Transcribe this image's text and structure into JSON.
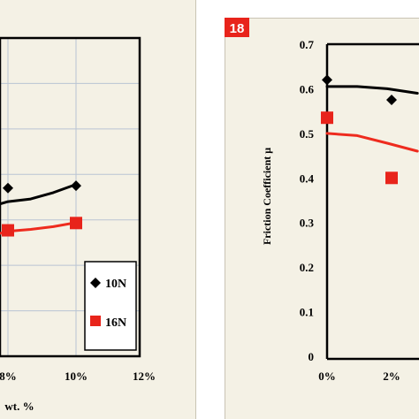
{
  "colors": {
    "panel_bg": "#f4f1e5",
    "panel_border": "#c9c4b4",
    "grid": "#b9c4d3",
    "series_10N": "#000000",
    "series_16N": "#ee2b1e",
    "marker_16N": "#e8241b",
    "badge": "#e8241b"
  },
  "chart_data": [
    {
      "panel": "left (cropped)",
      "type": "scatter",
      "x_ticks": [
        "8%",
        "10%",
        "12%"
      ],
      "x_label_fragment": "wt. %",
      "x_unit": "wt. %",
      "xlim": [
        0,
        12
      ],
      "ylim": [
        0,
        0.7
      ],
      "grid": true,
      "legend": {
        "position": "bottom-right",
        "entries": [
          {
            "label": "10N",
            "marker": "diamond"
          },
          {
            "label": "16N",
            "marker": "square"
          }
        ]
      },
      "series": [
        {
          "name": "10N",
          "marker": "diamond",
          "x": [
            8,
            10
          ],
          "y": [
            0.37,
            0.375
          ],
          "trend_y": [
            0.335,
            0.34,
            0.346,
            0.36,
            0.378
          ]
        },
        {
          "name": "16N",
          "marker": "square",
          "x": [
            8,
            10
          ],
          "y": [
            0.277,
            0.293
          ],
          "trend_y": [
            0.27,
            0.275,
            0.279,
            0.285,
            0.294
          ]
        }
      ]
    },
    {
      "panel": "right",
      "badge": "18",
      "type": "scatter",
      "ylabel": "Friction   Coefficient μ",
      "y_ticks": [
        "0",
        "0.1",
        "0.2",
        "0.3",
        "0.4",
        "0.5",
        "0.6",
        "0.7"
      ],
      "x_ticks": [
        "0%",
        "2%"
      ],
      "ylim": [
        0,
        0.7
      ],
      "xlim": [
        0,
        12
      ],
      "grid": false,
      "series": [
        {
          "name": "10N",
          "marker": "diamond",
          "x": [
            0,
            2
          ],
          "y": [
            0.62,
            0.575
          ],
          "trend_y": [
            0.605,
            0.605,
            0.6,
            0.59
          ]
        },
        {
          "name": "16N",
          "marker": "square",
          "x": [
            0,
            2
          ],
          "y": [
            0.535,
            0.4
          ],
          "trend_y": [
            0.5,
            0.495,
            0.478,
            0.46
          ]
        }
      ]
    }
  ]
}
